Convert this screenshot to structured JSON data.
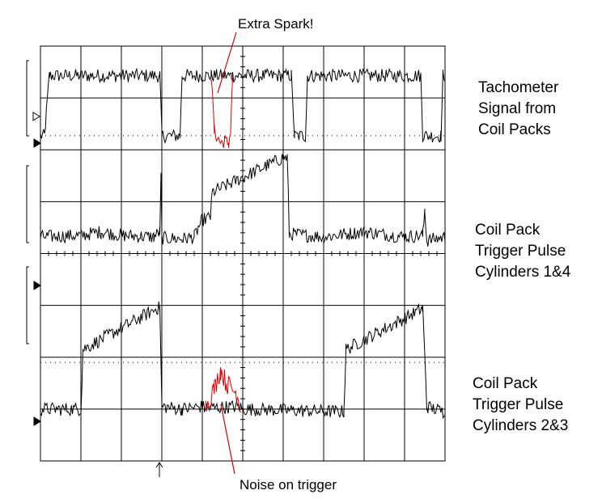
{
  "chart_data": {
    "type": "line",
    "title": "",
    "xlabel": "",
    "ylabel": "",
    "grid": true,
    "grid_divisions": {
      "x": 10,
      "y": 8
    },
    "xlim": [
      0,
      10
    ],
    "ylim": [
      0,
      8
    ],
    "x_units": "divisions",
    "y_units": "divisions",
    "series": [
      {
        "key": "tach",
        "label_lines": [
          "Tachometer",
          "Signal from",
          "Coil Packs"
        ],
        "color": "#000000",
        "noise": 0.13,
        "points": [
          [
            0.0,
            6.27
          ],
          [
            0.1,
            6.27
          ],
          [
            0.22,
            7.43
          ],
          [
            2.95,
            7.43
          ],
          [
            3.0,
            6.27
          ],
          [
            3.45,
            6.27
          ],
          [
            3.5,
            7.43
          ],
          [
            4.22,
            7.43
          ],
          [
            4.72,
            7.43
          ],
          [
            4.75,
            7.43
          ],
          [
            6.2,
            7.43
          ],
          [
            6.28,
            6.27
          ],
          [
            6.55,
            6.27
          ],
          [
            6.6,
            7.43
          ],
          [
            9.4,
            7.43
          ],
          [
            9.45,
            6.27
          ],
          [
            9.9,
            6.27
          ],
          [
            9.95,
            7.43
          ],
          [
            10.0,
            7.43
          ]
        ]
      },
      {
        "key": "extra_spark",
        "color": "#e00000",
        "noise": 0.13,
        "points": [
          [
            4.22,
            7.43
          ],
          [
            4.3,
            6.35
          ],
          [
            4.45,
            6.13
          ],
          [
            4.55,
            6.17
          ],
          [
            4.65,
            6.13
          ],
          [
            4.7,
            6.35
          ],
          [
            4.75,
            7.43
          ]
        ]
      },
      {
        "key": "cyl14",
        "label_lines": [
          "Coil Pack",
          "Trigger Pulse",
          "Cylinders 1&4"
        ],
        "color": "#000000",
        "noise": 0.13,
        "points": [
          [
            0.0,
            4.32
          ],
          [
            1.0,
            4.35
          ],
          [
            1.5,
            4.42
          ],
          [
            2.0,
            4.35
          ],
          [
            2.8,
            4.32
          ],
          [
            2.95,
            4.42
          ],
          [
            2.98,
            5.45
          ],
          [
            3.0,
            4.3
          ],
          [
            3.5,
            4.28
          ],
          [
            3.8,
            4.32
          ],
          [
            4.0,
            4.65
          ],
          [
            4.2,
            4.7
          ],
          [
            4.25,
            5.18
          ],
          [
            6.0,
            5.85
          ],
          [
            6.1,
            5.85
          ],
          [
            6.15,
            4.38
          ],
          [
            7.0,
            4.32
          ],
          [
            8.0,
            4.42
          ],
          [
            9.0,
            4.32
          ],
          [
            9.45,
            4.35
          ],
          [
            9.5,
            4.85
          ],
          [
            9.55,
            4.25
          ],
          [
            10.0,
            4.32
          ]
        ]
      },
      {
        "key": "cyl23",
        "label_lines": [
          "Coil Pack",
          "Trigger Pulse",
          "Cylinders 2&3"
        ],
        "color": "#000000",
        "noise": 0.13,
        "points": [
          [
            0.0,
            1.0
          ],
          [
            1.0,
            1.0
          ],
          [
            1.05,
            2.15
          ],
          [
            2.9,
            2.95
          ],
          [
            2.95,
            2.95
          ],
          [
            3.0,
            1.05
          ],
          [
            3.5,
            1.0
          ],
          [
            4.0,
            1.05
          ],
          [
            4.05,
            1.02
          ],
          [
            4.9,
            1.05
          ],
          [
            5.0,
            1.0
          ],
          [
            7.5,
            0.95
          ],
          [
            7.55,
            2.15
          ],
          [
            9.4,
            2.92
          ],
          [
            9.45,
            2.92
          ],
          [
            9.55,
            1.05
          ],
          [
            9.95,
            0.95
          ],
          [
            10.0,
            1.0
          ]
        ]
      },
      {
        "key": "noise_on_trigger",
        "color": "#e00000",
        "noise": 0.2,
        "points": [
          [
            4.08,
            1.05
          ],
          [
            4.3,
            1.4
          ],
          [
            4.45,
            1.75
          ],
          [
            4.6,
            1.5
          ],
          [
            4.85,
            1.3
          ],
          [
            4.95,
            1.05
          ]
        ]
      }
    ],
    "annotations": [
      {
        "key": "extra_spark",
        "text": "Extra Spark!"
      },
      {
        "key": "noise_on_trigger",
        "text": "Noise on trigger"
      }
    ]
  }
}
